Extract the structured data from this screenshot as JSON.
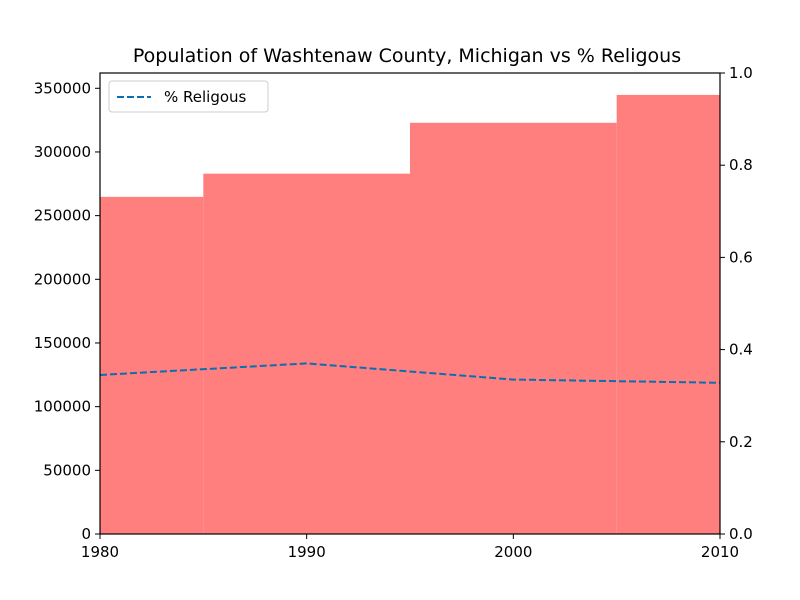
{
  "chart_data": {
    "type": "bar",
    "title": "Population of Washtenaw County, Michigan vs % Religous",
    "xlabel": "",
    "ylabel": "",
    "categories": [
      1980,
      1990,
      2000,
      2010
    ],
    "series": [
      {
        "type": "bar",
        "axis": "left",
        "color": "#ff7f7f",
        "values": [
          264748,
          282937,
          322895,
          344791
        ]
      },
      {
        "type": "line",
        "axis": "right",
        "name": "% Religous",
        "color": "#0a6eb4",
        "line_style": "dashed",
        "values": [
          0.345,
          0.37,
          0.335,
          0.328
        ]
      }
    ],
    "xlim": [
      1980,
      2010
    ],
    "ylim_left": [
      0,
      362000
    ],
    "ylim_right": [
      0,
      1.0
    ],
    "x_ticks": [
      "1980",
      "1990",
      "2000",
      "2010"
    ],
    "y_ticks_left": [
      "0",
      "50000",
      "100000",
      "150000",
      "200000",
      "250000",
      "300000",
      "350000"
    ],
    "y_ticks_right": [
      "0.0",
      "0.2",
      "0.4",
      "0.6",
      "0.8",
      "1.0"
    ],
    "legend": {
      "position": "upper-left"
    },
    "grid": false
  }
}
